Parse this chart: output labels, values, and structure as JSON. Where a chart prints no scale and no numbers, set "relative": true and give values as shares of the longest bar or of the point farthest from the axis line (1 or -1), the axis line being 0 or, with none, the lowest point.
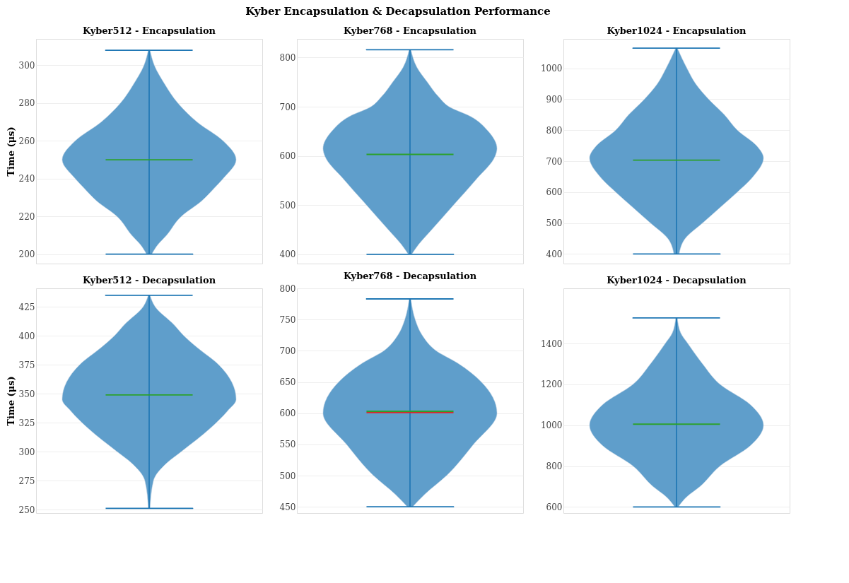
{
  "chart_data": [
    {
      "type": "area",
      "orientation": "horizontal",
      "relative": true,
      "title": "Kyber512 - Encapsulation",
      "ylabel": "Time (μs)",
      "annotations": [
        "Kyber Encapsulation & Decapsulation Performance"
      ],
      "ylim": [
        195,
        314
      ],
      "yticks": [
        200,
        220,
        240,
        260,
        280,
        300
      ],
      "grid": "y",
      "series": [
        {
          "color": "#5f9ecb",
          "x": [
            200,
            205,
            210,
            220,
            228,
            235,
            240,
            250,
            260,
            270,
            280,
            290,
            300,
            308
          ],
          "values": [
            0.03,
            0.1,
            0.2,
            0.37,
            0.6,
            0.75,
            0.85,
            1,
            0.85,
            0.55,
            0.33,
            0.18,
            0.06,
            0.01
          ]
        },
        {
          "color": "#5f9ecb",
          "x": [
            200,
            205,
            210,
            220,
            228,
            235,
            240,
            250,
            260,
            270,
            280,
            290,
            300,
            308
          ],
          "values": [
            -0.03,
            -0.1,
            -0.2,
            -0.37,
            -0.6,
            -0.75,
            -0.85,
            -1,
            -0.85,
            -0.55,
            -0.33,
            -0.18,
            -0.06,
            -0.01
          ]
        },
        {
          "type": "line",
          "color": "#1f77b4",
          "x": [
            200,
            200,
            200,
            308,
            308,
            308
          ],
          "values": [
            -0.5,
            0.5,
            0,
            0,
            -0.5,
            0.5
          ]
        },
        {
          "type": "line",
          "color": "#2ca02c",
          "x": [
            250,
            250
          ],
          "values": [
            -0.5,
            0.5
          ]
        }
      ]
    },
    {
      "type": "area",
      "orientation": "horizontal",
      "relative": true,
      "title": "Kyber768 - Encapsulation",
      "ylim": [
        381,
        838
      ],
      "yticks": [
        400,
        500,
        600,
        700,
        800
      ],
      "grid": "y",
      "series": [
        {
          "color": "#5f9ecb",
          "x": [
            400,
            420,
            450,
            500,
            550,
            600,
            615,
            650,
            680,
            700,
            720,
            750,
            780,
            816
          ],
          "values": [
            0.02,
            0.1,
            0.25,
            0.5,
            0.75,
            0.98,
            1,
            0.9,
            0.7,
            0.45,
            0.33,
            0.2,
            0.08,
            0.01
          ]
        },
        {
          "color": "#5f9ecb",
          "x": [
            400,
            420,
            450,
            500,
            550,
            600,
            615,
            650,
            680,
            700,
            720,
            750,
            780,
            816
          ],
          "values": [
            -0.02,
            -0.1,
            -0.25,
            -0.5,
            -0.75,
            -0.98,
            -1,
            -0.9,
            -0.7,
            -0.45,
            -0.33,
            -0.2,
            -0.08,
            -0.01
          ]
        },
        {
          "type": "line",
          "color": "#1f77b4",
          "x": [
            400,
            400,
            400,
            816,
            816,
            816
          ],
          "values": [
            -0.5,
            0.5,
            0,
            0,
            -0.5,
            0.5
          ]
        },
        {
          "type": "line",
          "color": "#2ca02c",
          "x": [
            603,
            603
          ],
          "values": [
            -0.5,
            0.5
          ]
        }
      ]
    },
    {
      "type": "area",
      "orientation": "horizontal",
      "relative": true,
      "title": "Kyber1024 - Encapsulation",
      "ylim": [
        369,
        1095
      ],
      "yticks": [
        400,
        500,
        600,
        700,
        800,
        900,
        1000
      ],
      "grid": "y",
      "series": [
        {
          "color": "#5f9ecb",
          "x": [
            400,
            450,
            500,
            550,
            600,
            650,
            710,
            750,
            800,
            850,
            900,
            950,
            1000,
            1065
          ],
          "values": [
            0.03,
            0.1,
            0.3,
            0.5,
            0.7,
            0.88,
            1,
            0.92,
            0.7,
            0.55,
            0.37,
            0.22,
            0.12,
            0.01
          ]
        },
        {
          "color": "#5f9ecb",
          "x": [
            400,
            450,
            500,
            550,
            600,
            650,
            710,
            750,
            800,
            850,
            900,
            950,
            1000,
            1065
          ],
          "values": [
            -0.03,
            -0.1,
            -0.3,
            -0.5,
            -0.7,
            -0.88,
            -1,
            -0.92,
            -0.7,
            -0.55,
            -0.37,
            -0.22,
            -0.12,
            -0.01
          ]
        },
        {
          "type": "line",
          "color": "#1f77b4",
          "x": [
            400,
            400,
            400,
            1065,
            1065,
            1065
          ],
          "values": [
            -0.5,
            0.5,
            0,
            0,
            -0.5,
            0.5
          ]
        },
        {
          "type": "line",
          "color": "#2ca02c",
          "x": [
            703,
            703
          ],
          "values": [
            -0.5,
            0.5
          ]
        }
      ]
    },
    {
      "type": "area",
      "orientation": "horizontal",
      "relative": true,
      "title": "Kyber512 - Decapsulation",
      "ylabel": "Time (μs)",
      "ylim": [
        247,
        441
      ],
      "yticks": [
        250,
        275,
        300,
        325,
        350,
        375,
        400,
        425
      ],
      "grid": "y",
      "series": [
        {
          "color": "#5f9ecb",
          "x": [
            251,
            275,
            290,
            300,
            320,
            335,
            345,
            360,
            375,
            390,
            400,
            410,
            425,
            435
          ],
          "values": [
            0.01,
            0.05,
            0.2,
            0.37,
            0.7,
            0.9,
            1,
            0.95,
            0.8,
            0.55,
            0.4,
            0.28,
            0.07,
            0.01
          ]
        },
        {
          "color": "#5f9ecb",
          "x": [
            251,
            275,
            290,
            300,
            320,
            335,
            345,
            360,
            375,
            390,
            400,
            410,
            425,
            435
          ],
          "values": [
            -0.01,
            -0.05,
            -0.2,
            -0.37,
            -0.7,
            -0.9,
            -1,
            -0.95,
            -0.8,
            -0.55,
            -0.4,
            -0.28,
            -0.07,
            -0.01
          ]
        },
        {
          "type": "line",
          "color": "#1f77b4",
          "x": [
            251,
            251,
            251,
            435,
            435,
            435
          ],
          "values": [
            -0.5,
            0.5,
            0,
            0,
            -0.5,
            0.5
          ]
        },
        {
          "type": "line",
          "color": "#2ca02c",
          "x": [
            349,
            349
          ],
          "values": [
            -0.5,
            0.5
          ]
        }
      ]
    },
    {
      "type": "area",
      "orientation": "horizontal",
      "relative": true,
      "title": "Kyber768 - Decapsulation",
      "ylim": [
        440,
        800
      ],
      "yticks": [
        450,
        500,
        550,
        600,
        650,
        700,
        750,
        800
      ],
      "grid": "y",
      "series": [
        {
          "color": "#5f9ecb",
          "x": [
            450,
            470,
            500,
            550,
            600,
            650,
            680,
            700,
            725,
            750,
            783
          ],
          "values": [
            0.03,
            0.17,
            0.42,
            0.73,
            1,
            0.82,
            0.55,
            0.3,
            0.14,
            0.06,
            0.01
          ]
        },
        {
          "color": "#5f9ecb",
          "x": [
            450,
            470,
            500,
            550,
            600,
            650,
            680,
            700,
            725,
            750,
            783
          ],
          "values": [
            -0.03,
            -0.17,
            -0.42,
            -0.73,
            -1,
            -0.82,
            -0.55,
            -0.3,
            -0.14,
            -0.06,
            -0.01
          ]
        },
        {
          "type": "line",
          "color": "#1f77b4",
          "x": [
            450,
            450,
            450,
            783,
            783,
            783
          ],
          "values": [
            -0.5,
            0.5,
            0,
            0,
            -0.5,
            0.5
          ]
        },
        {
          "type": "line",
          "color": "#d62728",
          "x": [
            601,
            601
          ],
          "values": [
            -0.5,
            0.5
          ]
        },
        {
          "type": "line",
          "color": "#2ca02c",
          "x": [
            603,
            603
          ],
          "values": [
            -0.5,
            0.5
          ]
        }
      ]
    },
    {
      "type": "area",
      "orientation": "horizontal",
      "relative": true,
      "title": "Kyber1024 - Decapsulation",
      "ylim": [
        570,
        1670
      ],
      "yticks": [
        600,
        800,
        1000,
        1200,
        1400
      ],
      "grid": "y",
      "series": [
        {
          "color": "#5f9ecb",
          "x": [
            600,
            650,
            700,
            800,
            900,
            1000,
            1100,
            1200,
            1300,
            1400,
            1450,
            1525
          ],
          "values": [
            0.02,
            0.12,
            0.27,
            0.5,
            0.85,
            1,
            0.85,
            0.5,
            0.3,
            0.13,
            0.05,
            0.01
          ]
        },
        {
          "color": "#5f9ecb",
          "x": [
            600,
            650,
            700,
            800,
            900,
            1000,
            1100,
            1200,
            1300,
            1400,
            1450,
            1525
          ],
          "values": [
            -0.02,
            -0.12,
            -0.27,
            -0.5,
            -0.85,
            -1,
            -0.85,
            -0.5,
            -0.3,
            -0.13,
            -0.05,
            -0.01
          ]
        },
        {
          "type": "line",
          "color": "#1f77b4",
          "x": [
            600,
            600,
            600,
            1525,
            1525,
            1525
          ],
          "values": [
            -0.5,
            0.5,
            0,
            0,
            -0.5,
            0.5
          ]
        },
        {
          "type": "line",
          "color": "#2ca02c",
          "x": [
            1005,
            1005
          ],
          "values": [
            -0.5,
            0.5
          ]
        }
      ]
    }
  ]
}
